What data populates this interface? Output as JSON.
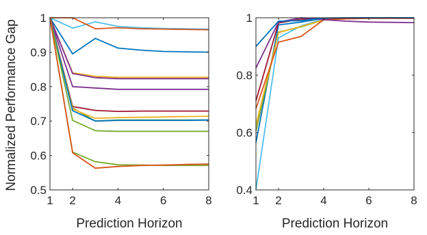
{
  "chart_data": [
    {
      "type": "line",
      "title": "",
      "xlabel": "Prediction Horizon",
      "ylabel": "Normalized Performance Gap",
      "xlim": [
        1,
        8
      ],
      "ylim": [
        0.5,
        1.0
      ],
      "xticks": [
        1,
        2,
        4,
        6,
        8
      ],
      "yticks": [
        0.5,
        0.6,
        0.7,
        0.8,
        0.9,
        1
      ],
      "xtick_labels": [
        "1",
        "2",
        "4",
        "6",
        "8"
      ],
      "ytick_labels": [
        "0.5",
        "0.6",
        "0.7",
        "0.8",
        "0.9",
        "1"
      ],
      "grid": false,
      "x": [
        1,
        2,
        3,
        4,
        5,
        6,
        7,
        8
      ],
      "series": [
        {
          "color": "#4DBEEE",
          "values": [
            1.0,
            0.97,
            0.988,
            0.975,
            0.971,
            0.969,
            0.968,
            0.967
          ]
        },
        {
          "color": "#D95319",
          "values": [
            1.0,
            1.0,
            0.968,
            0.971,
            0.968,
            0.967,
            0.966,
            0.965
          ]
        },
        {
          "color": "#0072BD",
          "values": [
            1.0,
            0.895,
            0.94,
            0.912,
            0.906,
            0.902,
            0.901,
            0.9
          ]
        },
        {
          "color": "#EDB120",
          "values": [
            1.0,
            0.84,
            0.83,
            0.827,
            0.827,
            0.827,
            0.827,
            0.827
          ]
        },
        {
          "color": "#7E2F8E",
          "values": [
            1.0,
            0.838,
            0.826,
            0.823,
            0.823,
            0.823,
            0.823,
            0.823
          ]
        },
        {
          "color": "#7E2F8E",
          "values": [
            1.0,
            0.8,
            0.796,
            0.792,
            0.792,
            0.792,
            0.792,
            0.792
          ]
        },
        {
          "color": "#A2142F",
          "values": [
            1.0,
            0.742,
            0.731,
            0.728,
            0.729,
            0.729,
            0.729,
            0.729
          ]
        },
        {
          "color": "#77AC30",
          "values": [
            1.0,
            0.738,
            0.7,
            0.703,
            0.703,
            0.703,
            0.703,
            0.703
          ]
        },
        {
          "color": "#EDB120",
          "values": [
            1.0,
            0.735,
            0.708,
            0.71,
            0.711,
            0.712,
            0.713,
            0.714
          ]
        },
        {
          "color": "#0072BD",
          "values": [
            1.0,
            0.73,
            0.7,
            0.702,
            0.702,
            0.702,
            0.702,
            0.703
          ]
        },
        {
          "color": "#77AC30",
          "values": [
            1.0,
            0.702,
            0.672,
            0.67,
            0.67,
            0.67,
            0.67,
            0.67
          ]
        },
        {
          "color": "#77AC30",
          "values": [
            1.0,
            0.61,
            0.582,
            0.573,
            0.572,
            0.571,
            0.571,
            0.571
          ]
        },
        {
          "color": "#D95319",
          "values": [
            1.0,
            0.608,
            0.563,
            0.568,
            0.571,
            0.572,
            0.574,
            0.575
          ]
        }
      ]
    },
    {
      "type": "line",
      "title": "",
      "xlabel": "Prediction Horizon",
      "ylabel": "",
      "xlim": [
        1,
        8
      ],
      "ylim": [
        0.4,
        1.0
      ],
      "xticks": [
        1,
        2,
        4,
        6,
        8
      ],
      "yticks": [
        0.4,
        0.6,
        0.8,
        1
      ],
      "xtick_labels": [
        "1",
        "2",
        "4",
        "6",
        "8"
      ],
      "ytick_labels": [
        "0.4",
        "0.6",
        "0.8",
        "1"
      ],
      "grid": false,
      "x": [
        1,
        2,
        3,
        4,
        5,
        6,
        7,
        8
      ],
      "series": [
        {
          "color": "#4DBEEE",
          "values": [
            0.4,
            0.93,
            0.972,
            0.995,
            0.998,
            0.999,
            0.999,
            0.999
          ]
        },
        {
          "color": "#0072BD",
          "values": [
            0.565,
            0.975,
            0.985,
            0.998,
            0.999,
            1.0,
            1.0,
            1.0
          ]
        },
        {
          "color": "#77AC30",
          "values": [
            0.605,
            0.95,
            0.968,
            0.992,
            0.997,
            0.999,
            0.999,
            0.999
          ]
        },
        {
          "color": "#EDB120",
          "values": [
            0.625,
            0.948,
            0.97,
            0.992,
            0.997,
            0.999,
            0.999,
            0.999
          ]
        },
        {
          "color": "#D95319",
          "values": [
            0.683,
            0.915,
            0.935,
            0.993,
            0.996,
            0.998,
            0.998,
            0.998
          ]
        },
        {
          "color": "#A2142F",
          "values": [
            0.71,
            0.982,
            0.995,
            0.998,
            0.999,
            0.999,
            0.999,
            0.999
          ]
        },
        {
          "color": "#7E2F8E",
          "values": [
            0.825,
            0.985,
            1.0,
            0.993,
            0.988,
            0.985,
            0.984,
            0.983
          ]
        },
        {
          "color": "#0072BD",
          "values": [
            0.9,
            0.988,
            0.99,
            0.999,
            1.0,
            1.0,
            1.0,
            1.0
          ]
        }
      ]
    }
  ]
}
